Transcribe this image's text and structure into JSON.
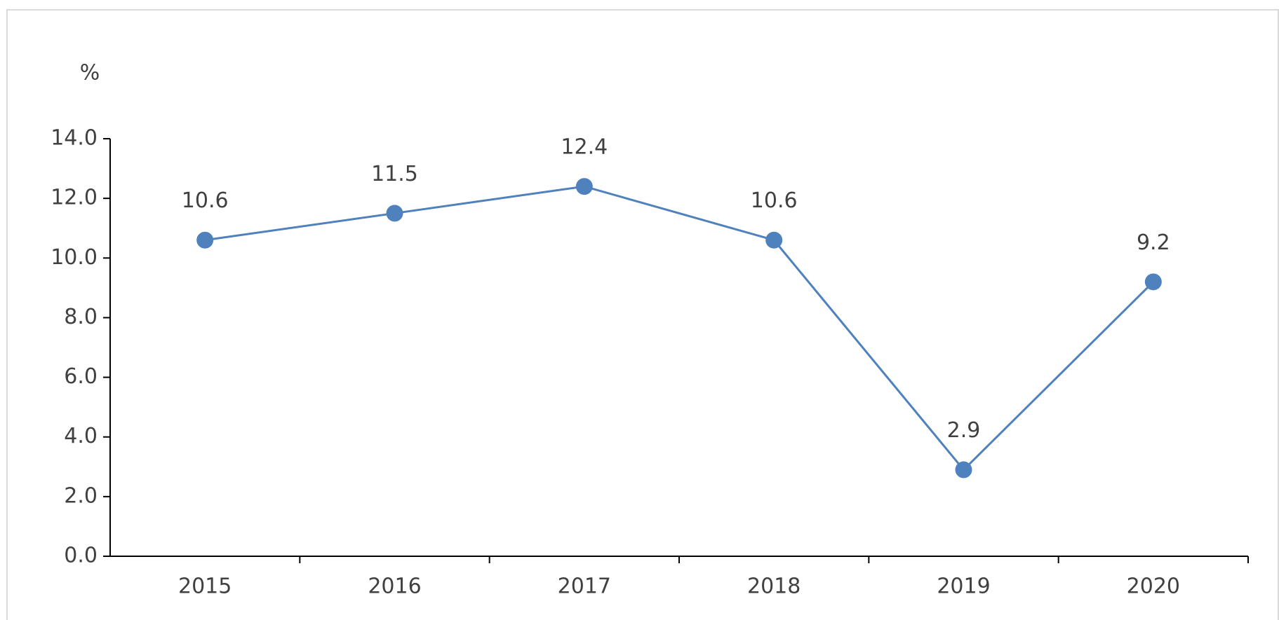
{
  "chart_data": {
    "type": "line",
    "ylabel": "%",
    "categories": [
      "2015",
      "2016",
      "2017",
      "2018",
      "2019",
      "2020"
    ],
    "series": [
      {
        "color": "#4f81bd",
        "values": [
          10.6,
          11.5,
          12.4,
          10.6,
          2.9,
          9.2
        ]
      }
    ],
    "ylim": [
      0,
      14
    ],
    "yticks": [
      {
        "value": 0,
        "label": "0.0"
      },
      {
        "value": 2,
        "label": "2.0"
      },
      {
        "value": 4,
        "label": "4.0"
      },
      {
        "value": 6,
        "label": "6.0"
      },
      {
        "value": 8,
        "label": "8.0"
      },
      {
        "value": 10,
        "label": "10.0"
      },
      {
        "value": 12,
        "label": "12.0"
      },
      {
        "value": 14,
        "label": "14.0"
      }
    ],
    "grid": false
  }
}
